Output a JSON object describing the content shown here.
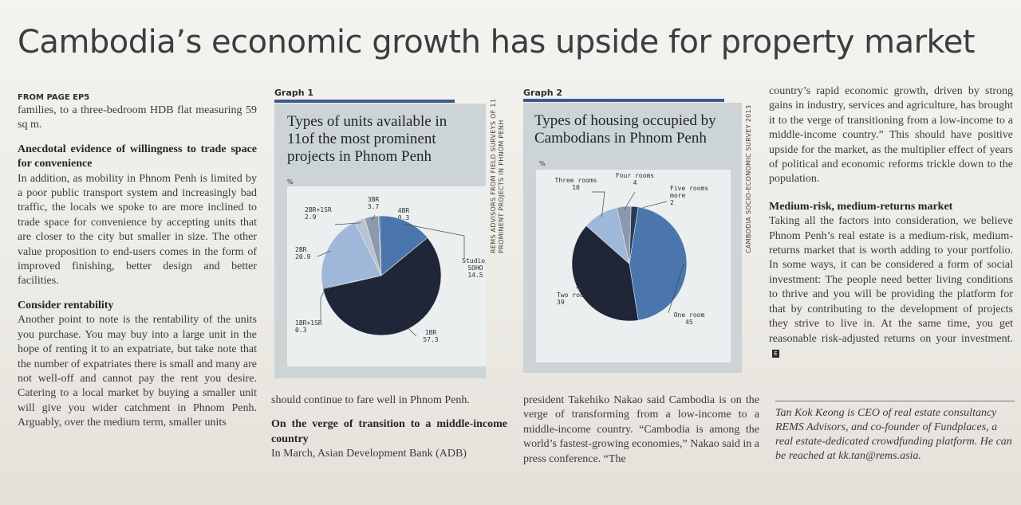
{
  "headline": "Cambodia’s economic growth has upside for property market",
  "column1": {
    "kicker": "FROM PAGE EP5",
    "p1": "families, to a three-bedroom HDB flat measuring 59 sq m.",
    "subhead1": "Anecdotal evidence of willingness to trade space for convenience",
    "p2": "In addition, as mobility in Phnom Penh is limited by a poor public transport system and increasingly bad traffic, the locals we spoke to are more inclined to trade space for convenience by accepting units that are closer to the city but smaller in size. The other value proposition to end-users comes in the form of improved finishing, better design and better facilities.",
    "subhead2": "Consider rentability",
    "p3": "Another point to note is the rentability of the units you purchase. You may buy into a large unit in the hope of renting it to an expatriate, but take note that the number of expatriates there is small and many are not well-off and cannot pay the rent you desire. Catering to a local market by buying a smaller unit will give you wider catchment in Phnom Penh. Arguably, over the medium term, smaller units"
  },
  "column2": {
    "p1": "should continue to fare well in Phnom Penh.",
    "subhead": "On the verge of transition to a middle-income country",
    "p2": "In March, Asian Development Bank (ADB)"
  },
  "column3": {
    "p1": "president Takehiko Nakao said Cambodia is on the verge of transforming from a low-income to a middle-income country. “Cambodia is among the world’s fastest-growing economies,” Nakao said in a press conference. “The"
  },
  "column4": {
    "p1": "country’s rapid economic growth, driven by strong gains in industry, services and agriculture, has brought it to the verge of transitioning from a low-income to a middle-income country.” This should have positive upside for the market, as the multiplier effect of years of political and economic reforms trickle down to the population.",
    "subhead": "Medium-risk, medium-returns market",
    "p2": "Taking all the factors into consideration, we believe Phnom Penh’s real estate is a medium-risk, medium-returns market that is worth adding to your portfolio. In some ways, it can be considered a form of social investment: The people need better living conditions to thrive and you will be providing the platform for that by contributing to the development of projects they strive to live in. At the same time, you get reasonable risk-adjusted returns on your investment.",
    "end_mark": "E"
  },
  "byline": "Tan Kok Keong is CEO of real estate consultancy REMS Advisors, and co-founder of Fundplaces, a real estate-dedicated crowdfunding platform. He can be reached at kk.tan@rems.asia.",
  "colors": {
    "navy_dark": "#1f2638",
    "navy": "#2b3a5c",
    "blue": "#4a76ad",
    "light_blue": "#9fb7d8",
    "grey_blue": "#8c98ab",
    "rule": "#3c5a8c"
  },
  "chart_data": [
    {
      "type": "pie",
      "label": "Graph 1",
      "title": "Types of units available in 11of the most prominent projects in Phnom Penh",
      "unit": "%",
      "source": "REMS ADVISORS FROM FIELD SURVEYS OF 11 PROMINENT PROJECTS IN PHNOM PENH",
      "slices": [
        {
          "name": "3BR",
          "value": 3.7,
          "display": "3.7",
          "color": "#8c98ab"
        },
        {
          "name": "4BR",
          "value": 0.3,
          "display": "0.3",
          "color": "#3c5a8c"
        },
        {
          "name": "Studio/ SOHO",
          "value": 14.5,
          "display": "14.5",
          "color": "#4a76ad"
        },
        {
          "name": "1BR",
          "value": 57.3,
          "display": "57.3",
          "color": "#1f2638"
        },
        {
          "name": "1BR+1SR",
          "value": 0.3,
          "display": "0.3",
          "color": "#2b3a5c"
        },
        {
          "name": "2BR",
          "value": 20.9,
          "display": "20.9",
          "color": "#9fb7d8"
        },
        {
          "name": "2BR+1SR",
          "value": 2.9,
          "display": "2.9",
          "color": "#b7c3d3"
        }
      ]
    },
    {
      "type": "pie",
      "label": "Graph 2",
      "title": "Types of housing occupied by Cambodians in Phnom Penh",
      "unit": "%",
      "source": "CAMBODIA SOCIO-ECONOMIC SURVEY 2013",
      "slices": [
        {
          "name": "Four rooms",
          "value": 4,
          "display": "4",
          "color": "#8c98ab"
        },
        {
          "name": "Five rooms or more",
          "value": 2,
          "display": "2",
          "color": "#2b3a5c"
        },
        {
          "name": "One room",
          "value": 45,
          "display": "45",
          "color": "#4a76ad"
        },
        {
          "name": "Two rooms",
          "value": 39,
          "display": "39",
          "color": "#1f2638"
        },
        {
          "name": "Three rooms",
          "value": 10,
          "display": "10",
          "color": "#9fb7d8"
        }
      ]
    }
  ]
}
